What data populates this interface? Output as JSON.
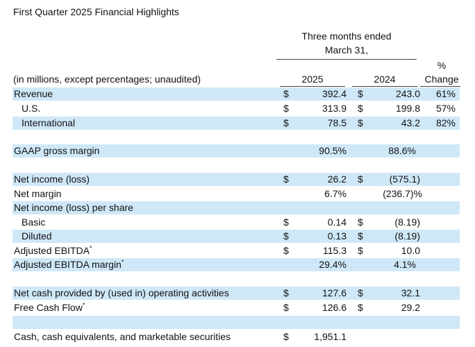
{
  "title": "First Quarter 2025 Financial Highlights",
  "header": {
    "period_line1": "Three months ended",
    "period_line2": "March 31,",
    "pct_line1": "%",
    "pct_line2": "Change",
    "unit_note": "(in millions, except percentages; unaudited)",
    "year1": "2025",
    "year2": "2024"
  },
  "rows": {
    "revenue": {
      "label": "Revenue",
      "d1": "$",
      "v1": "392.4",
      "d2": "$",
      "v2": "243.0",
      "chg": "61%"
    },
    "us": {
      "label": "U.S.",
      "d1": "$",
      "v1": "313.9",
      "d2": "$",
      "v2": "199.8",
      "chg": "57%"
    },
    "international": {
      "label": "International",
      "d1": "$",
      "v1": "78.5",
      "d2": "$",
      "v2": "43.2",
      "chg": "82%"
    },
    "gaap_gross_margin": {
      "label": "GAAP gross margin",
      "v1": "90.5%",
      "v2": "88.6%"
    },
    "net_income": {
      "label": "Net income (loss)",
      "d1": "$",
      "v1": "26.2",
      "d2": "$",
      "v2": "(575.1)"
    },
    "net_margin": {
      "label": "Net margin",
      "v1": "6.7%",
      "v2": "(236.7)%"
    },
    "eps_header": {
      "label": "Net income (loss) per share"
    },
    "basic": {
      "label": "Basic",
      "d1": "$",
      "v1": "0.14",
      "d2": "$",
      "v2": "(8.19)"
    },
    "diluted": {
      "label": "Diluted",
      "d1": "$",
      "v1": "0.13",
      "d2": "$",
      "v2": "(8.19)"
    },
    "adj_ebitda": {
      "label": "Adjusted EBITDA",
      "sup": "*",
      "d1": "$",
      "v1": "115.3",
      "d2": "$",
      "v2": "10.0"
    },
    "adj_ebitda_margin": {
      "label": "Adjusted EBITDA margin",
      "sup": "*",
      "v1": "29.4%",
      "v2": "4.1%"
    },
    "op_cash": {
      "label": "Net cash provided by (used in) operating activities",
      "d1": "$",
      "v1": "127.6",
      "d2": "$",
      "v2": "32.1"
    },
    "fcf": {
      "label": "Free Cash Flow",
      "sup": "*",
      "d1": "$",
      "v1": "126.6",
      "d2": "$",
      "v2": "29.2"
    },
    "cash": {
      "label": "Cash, cash equivalents, and marketable securities",
      "d1": "$",
      "v1": "1,951.1"
    }
  },
  "colors": {
    "row_shade": "#cfe8f7",
    "text": "#111111"
  }
}
